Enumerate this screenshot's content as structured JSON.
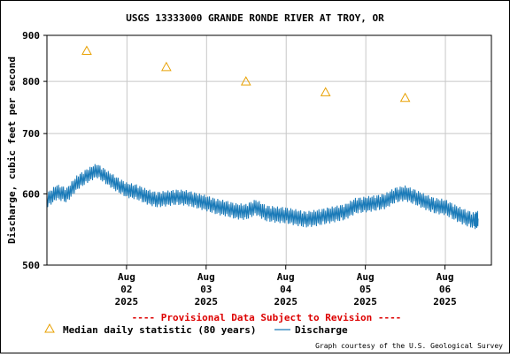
{
  "chart_data": {
    "type": "line",
    "title": "USGS 13333000 GRANDE RONDE RIVER AT TROY, OR",
    "ylabel": "Discharge, cubic feet per second",
    "xlabel": "",
    "y_scale": "log",
    "ylim": [
      500,
      900
    ],
    "y_ticks": [
      {
        "value": 900,
        "label": "900"
      },
      {
        "value": 800,
        "label": "800"
      },
      {
        "value": 700,
        "label": "700"
      },
      {
        "value": 600,
        "label": "600"
      },
      {
        "value": 500,
        "label": "500"
      }
    ],
    "xlim": [
      "2025-08-01",
      "2025-08-06T14:00"
    ],
    "x_ticks": [
      {
        "value": "2025-08-02",
        "month": "Aug",
        "day": "02",
        "year": "2025"
      },
      {
        "value": "2025-08-03",
        "month": "Aug",
        "day": "03",
        "year": "2025"
      },
      {
        "value": "2025-08-04",
        "month": "Aug",
        "day": "04",
        "year": "2025"
      },
      {
        "value": "2025-08-05",
        "month": "Aug",
        "day": "05",
        "year": "2025"
      },
      {
        "value": "2025-08-06",
        "month": "Aug",
        "day": "06",
        "year": "2025"
      }
    ],
    "grid": true,
    "series": [
      {
        "name": "Discharge",
        "color": "#1a7ab8",
        "x": [
          "2025-08-01T00:00",
          "2025-08-01T03:00",
          "2025-08-01T06:00",
          "2025-08-01T09:00",
          "2025-08-01T12:00",
          "2025-08-01T15:00",
          "2025-08-01T18:00",
          "2025-08-01T21:00",
          "2025-08-02T00:00",
          "2025-08-02T03:00",
          "2025-08-02T06:00",
          "2025-08-02T09:00",
          "2025-08-02T12:00",
          "2025-08-02T15:00",
          "2025-08-02T18:00",
          "2025-08-02T21:00",
          "2025-08-03T00:00",
          "2025-08-03T03:00",
          "2025-08-03T06:00",
          "2025-08-03T09:00",
          "2025-08-03T12:00",
          "2025-08-03T15:00",
          "2025-08-03T18:00",
          "2025-08-03T21:00",
          "2025-08-04T00:00",
          "2025-08-04T03:00",
          "2025-08-04T06:00",
          "2025-08-04T09:00",
          "2025-08-04T12:00",
          "2025-08-04T15:00",
          "2025-08-04T18:00",
          "2025-08-04T21:00",
          "2025-08-05T00:00",
          "2025-08-05T03:00",
          "2025-08-05T06:00",
          "2025-08-05T09:00",
          "2025-08-05T12:00",
          "2025-08-05T15:00",
          "2025-08-05T18:00",
          "2025-08-05T21:00",
          "2025-08-06T00:00",
          "2025-08-06T03:00",
          "2025-08-06T06:00",
          "2025-08-06T09:00",
          "2025-08-06T10:00"
        ],
        "values": [
          590,
          603,
          598,
          617,
          628,
          637,
          626,
          615,
          606,
          603,
          596,
          591,
          593,
          595,
          594,
          590,
          586,
          581,
          578,
          574,
          573,
          580,
          571,
          569,
          568,
          565,
          562,
          564,
          567,
          570,
          573,
          582,
          584,
          586,
          589,
          598,
          601,
          595,
          588,
          582,
          580,
          572,
          565,
          560,
          563
        ]
      },
      {
        "name": "Median daily statistic (80 years)",
        "color": "#e8a000",
        "marker": "triangle",
        "x": [
          "2025-08-01T12:00",
          "2025-08-02T12:00",
          "2025-08-03T12:00",
          "2025-08-04T12:00",
          "2025-08-05T12:00"
        ],
        "values": [
          865,
          830,
          800,
          778,
          767
        ]
      }
    ]
  },
  "notice": "---- Provisional Data Subject to Revision ----",
  "legend": {
    "median_label": "Median daily statistic (80 years)",
    "discharge_label": "Discharge"
  },
  "credit": "Graph courtesy of the U.S. Geological Survey",
  "colors": {
    "notice": "#dd0000",
    "grid": "#c8c8c8",
    "axis": "#000000"
  }
}
